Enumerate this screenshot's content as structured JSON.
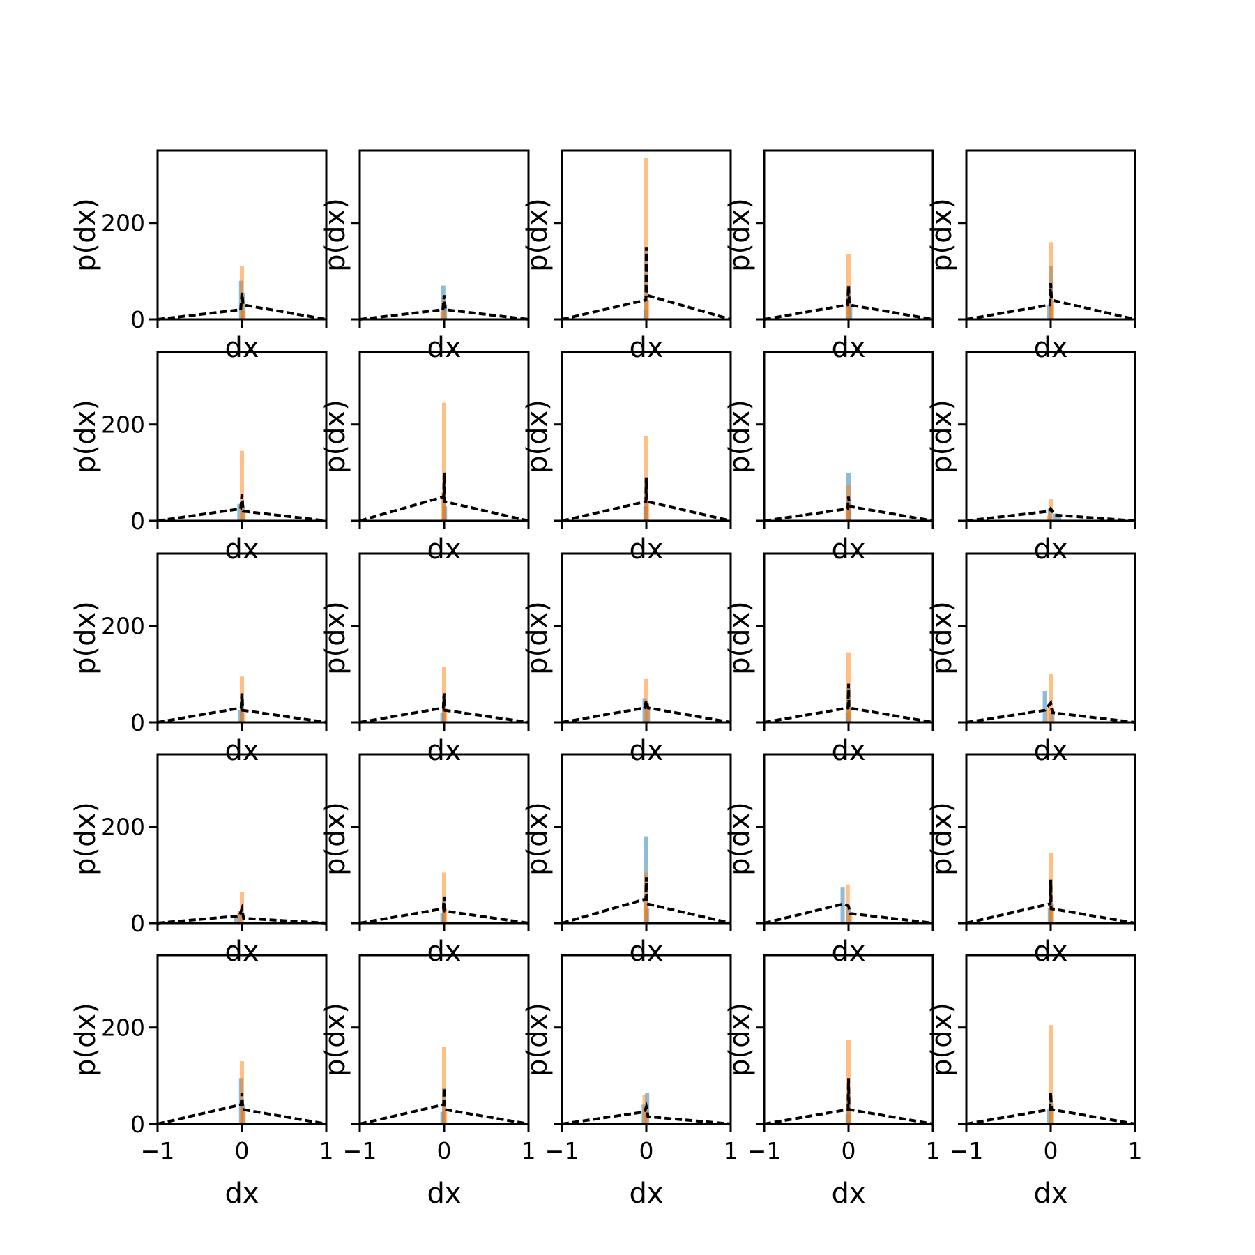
{
  "figure": {
    "rows": 5,
    "cols": 5,
    "colors": {
      "blue": "#1f77b4",
      "orange": "#ff7f0e",
      "kde": "#000000"
    },
    "hist_alpha": 0.5,
    "xlabel": "dx",
    "ylabel": "p(dx)"
  },
  "chart_data": {
    "type": "bar",
    "xlim": [
      -1,
      1
    ],
    "ylim": [
      0,
      350
    ],
    "xticks": [
      -1,
      0,
      1
    ],
    "xtick_labels": [
      "−1",
      "0",
      "1"
    ],
    "yticks": [
      0,
      200
    ],
    "ytick_labels": [
      "0",
      "200"
    ],
    "grid": false,
    "legend": "none",
    "subplots": [
      {
        "blue": [
          [
            -0.01,
            80
          ],
          [
            0.01,
            55
          ]
        ],
        "orange": [
          [
            0.0,
            110
          ],
          [
            0.02,
            20
          ]
        ],
        "kde": [
          [
            -0.015,
            20
          ],
          [
            0.0,
            55
          ],
          [
            0.015,
            30
          ]
        ]
      },
      {
        "blue": [
          [
            -0.01,
            70
          ],
          [
            0.01,
            30
          ]
        ],
        "orange": [
          [
            0.0,
            40
          ],
          [
            -0.02,
            15
          ]
        ],
        "kde": [
          [
            -0.015,
            20
          ],
          [
            0.0,
            50
          ],
          [
            0.015,
            20
          ]
        ]
      },
      {
        "blue": [
          [
            0.0,
            150
          ],
          [
            -0.01,
            20
          ]
        ],
        "orange": [
          [
            0.0,
            335
          ],
          [
            0.01,
            40
          ]
        ],
        "kde": [
          [
            -0.005,
            40
          ],
          [
            0.0,
            150
          ],
          [
            0.005,
            50
          ]
        ]
      },
      {
        "blue": [
          [
            0.0,
            70
          ],
          [
            0.02,
            30
          ]
        ],
        "orange": [
          [
            0.0,
            135
          ],
          [
            -0.01,
            40
          ]
        ],
        "kde": [
          [
            -0.01,
            30
          ],
          [
            0.0,
            70
          ],
          [
            0.01,
            30
          ]
        ]
      },
      {
        "blue": [
          [
            0.0,
            110
          ],
          [
            -0.02,
            30
          ]
        ],
        "orange": [
          [
            0.0,
            160
          ],
          [
            0.01,
            40
          ]
        ],
        "kde": [
          [
            -0.01,
            30
          ],
          [
            0.0,
            75
          ],
          [
            0.01,
            40
          ]
        ]
      },
      {
        "blue": [
          [
            -0.03,
            35
          ],
          [
            0.01,
            30
          ]
        ],
        "orange": [
          [
            0.0,
            145
          ],
          [
            0.02,
            20
          ]
        ],
        "kde": [
          [
            -0.015,
            25
          ],
          [
            0.0,
            55
          ],
          [
            0.015,
            20
          ]
        ]
      },
      {
        "blue": [
          [
            0.0,
            60
          ],
          [
            0.01,
            30
          ]
        ],
        "orange": [
          [
            0.0,
            245
          ],
          [
            -0.01,
            60
          ]
        ],
        "kde": [
          [
            -0.005,
            50
          ],
          [
            0.0,
            100
          ],
          [
            0.005,
            40
          ]
        ]
      },
      {
        "blue": [
          [
            0.0,
            90
          ],
          [
            -0.01,
            30
          ]
        ],
        "orange": [
          [
            0.0,
            175
          ],
          [
            0.01,
            40
          ]
        ],
        "kde": [
          [
            -0.005,
            40
          ],
          [
            0.0,
            90
          ],
          [
            0.005,
            40
          ]
        ]
      },
      {
        "blue": [
          [
            0.0,
            100
          ],
          [
            0.01,
            40
          ]
        ],
        "orange": [
          [
            0.0,
            75
          ],
          [
            -0.01,
            30
          ]
        ],
        "kde": [
          [
            -0.01,
            25
          ],
          [
            0.0,
            50
          ],
          [
            0.01,
            30
          ]
        ]
      },
      {
        "blue": [
          [
            -0.01,
            25
          ],
          [
            0.05,
            15
          ],
          [
            0.1,
            10
          ]
        ],
        "orange": [
          [
            0.0,
            45
          ],
          [
            -0.02,
            10
          ]
        ],
        "kde": [
          [
            -0.02,
            20
          ],
          [
            0.0,
            25
          ],
          [
            0.05,
            12
          ]
        ]
      },
      {
        "blue": [
          [
            0.0,
            60
          ],
          [
            -0.02,
            25
          ]
        ],
        "orange": [
          [
            0.0,
            95
          ],
          [
            0.02,
            20
          ]
        ],
        "kde": [
          [
            -0.01,
            30
          ],
          [
            0.0,
            60
          ],
          [
            0.01,
            25
          ]
        ]
      },
      {
        "blue": [
          [
            0.0,
            55
          ],
          [
            -0.02,
            20
          ]
        ],
        "orange": [
          [
            0.0,
            115
          ],
          [
            0.01,
            30
          ]
        ],
        "kde": [
          [
            -0.01,
            30
          ],
          [
            0.0,
            60
          ],
          [
            0.01,
            25
          ]
        ]
      },
      {
        "blue": [
          [
            -0.02,
            50
          ],
          [
            0.02,
            30
          ]
        ],
        "orange": [
          [
            0.0,
            90
          ],
          [
            0.01,
            40
          ]
        ],
        "kde": [
          [
            -0.02,
            30
          ],
          [
            0.0,
            45
          ],
          [
            0.02,
            30
          ]
        ]
      },
      {
        "blue": [
          [
            0.0,
            70
          ],
          [
            -0.01,
            20
          ]
        ],
        "orange": [
          [
            0.0,
            145
          ],
          [
            0.01,
            30
          ]
        ],
        "kde": [
          [
            -0.005,
            30
          ],
          [
            0.0,
            80
          ],
          [
            0.005,
            30
          ]
        ]
      },
      {
        "blue": [
          [
            -0.07,
            65
          ],
          [
            0.02,
            20
          ]
        ],
        "orange": [
          [
            0.0,
            100
          ],
          [
            -0.03,
            30
          ]
        ],
        "kde": [
          [
            -0.07,
            25
          ],
          [
            0.0,
            40
          ],
          [
            0.02,
            20
          ]
        ]
      },
      {
        "blue": [
          [
            -0.07,
            15
          ],
          [
            -0.02,
            20
          ]
        ],
        "orange": [
          [
            0.0,
            65
          ],
          [
            -0.03,
            25
          ]
        ],
        "kde": [
          [
            -0.03,
            15
          ],
          [
            0.0,
            30
          ],
          [
            0.02,
            10
          ]
        ]
      },
      {
        "blue": [
          [
            0.0,
            50
          ],
          [
            -0.02,
            20
          ]
        ],
        "orange": [
          [
            0.0,
            105
          ],
          [
            0.01,
            30
          ]
        ],
        "kde": [
          [
            -0.01,
            30
          ],
          [
            0.0,
            55
          ],
          [
            0.01,
            25
          ]
        ]
      },
      {
        "blue": [
          [
            0.0,
            180
          ],
          [
            0.01,
            30
          ]
        ],
        "orange": [
          [
            0.0,
            105
          ],
          [
            -0.01,
            40
          ]
        ],
        "kde": [
          [
            -0.005,
            50
          ],
          [
            0.0,
            95
          ],
          [
            0.005,
            40
          ]
        ]
      },
      {
        "blue": [
          [
            -0.07,
            75
          ],
          [
            0.0,
            30
          ]
        ],
        "orange": [
          [
            -0.01,
            80
          ],
          [
            0.02,
            20
          ]
        ],
        "kde": [
          [
            -0.05,
            40
          ],
          [
            0.0,
            35
          ],
          [
            0.02,
            20
          ]
        ]
      },
      {
        "blue": [
          [
            0.0,
            90
          ],
          [
            -0.01,
            30
          ]
        ],
        "orange": [
          [
            0.0,
            145
          ],
          [
            0.01,
            40
          ]
        ],
        "kde": [
          [
            -0.005,
            40
          ],
          [
            0.0,
            90
          ],
          [
            0.005,
            30
          ]
        ]
      },
      {
        "blue": [
          [
            -0.01,
            95
          ],
          [
            0.01,
            40
          ]
        ],
        "orange": [
          [
            0.0,
            130
          ],
          [
            0.02,
            30
          ]
        ],
        "kde": [
          [
            -0.01,
            40
          ],
          [
            0.0,
            65
          ],
          [
            0.01,
            30
          ]
        ]
      },
      {
        "blue": [
          [
            0.0,
            75
          ],
          [
            -0.02,
            25
          ]
        ],
        "orange": [
          [
            0.0,
            160
          ],
          [
            0.01,
            30
          ]
        ],
        "kde": [
          [
            -0.005,
            40
          ],
          [
            0.0,
            75
          ],
          [
            0.005,
            30
          ]
        ]
      },
      {
        "blue": [
          [
            -0.03,
            40
          ],
          [
            0.01,
            65
          ]
        ],
        "orange": [
          [
            -0.02,
            60
          ],
          [
            0.0,
            30
          ]
        ],
        "kde": [
          [
            -0.02,
            25
          ],
          [
            0.0,
            35
          ],
          [
            0.02,
            15
          ]
        ]
      },
      {
        "blue": [
          [
            0.0,
            60
          ],
          [
            -0.01,
            20
          ]
        ],
        "orange": [
          [
            0.0,
            175
          ],
          [
            0.01,
            30
          ]
        ],
        "kde": [
          [
            -0.005,
            30
          ],
          [
            0.0,
            95
          ],
          [
            0.005,
            30
          ]
        ]
      },
      {
        "blue": [
          [
            -0.02,
            30
          ],
          [
            0.0,
            50
          ]
        ],
        "orange": [
          [
            0.0,
            205
          ],
          [
            0.01,
            40
          ]
        ],
        "kde": [
          [
            -0.01,
            30
          ],
          [
            0.0,
            65
          ],
          [
            0.01,
            30
          ]
        ]
      }
    ]
  }
}
